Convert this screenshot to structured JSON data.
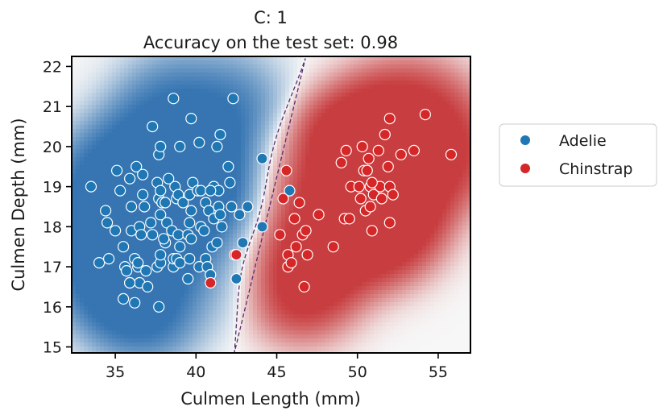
{
  "chart_data": {
    "type": "scatter",
    "title": "C: 1",
    "subtitle": "Accuracy on the test set: 0.98",
    "xlabel": "Culmen Length (mm)",
    "ylabel": "Culmen Depth (mm)",
    "xlim": [
      32.3,
      57.0
    ],
    "ylim": [
      14.85,
      22.25
    ],
    "xticks": [
      35,
      40,
      45,
      50,
      55
    ],
    "yticks": [
      15,
      16,
      17,
      18,
      19,
      20,
      21,
      22
    ],
    "grid": false,
    "background": "decision-function heatmap (blue = Adelie side, red = Chinstrap side) with dashed decision boundary",
    "legend": {
      "placement": "outside-right",
      "entries": [
        "Adelie",
        "Chinstrap"
      ]
    },
    "colors": {
      "Adelie": "#1f77b4",
      "Chinstrap": "#d62728",
      "boundary": "#5a2d6e"
    },
    "series": [
      {
        "name": "Adelie",
        "points": [
          [
            33.5,
            19.0
          ],
          [
            34.0,
            17.1
          ],
          [
            34.4,
            18.4
          ],
          [
            34.5,
            18.1
          ],
          [
            34.6,
            17.2
          ],
          [
            35.0,
            17.9
          ],
          [
            35.1,
            19.4
          ],
          [
            35.3,
            18.9
          ],
          [
            35.5,
            16.2
          ],
          [
            35.5,
            17.5
          ],
          [
            35.6,
            17.0
          ],
          [
            35.7,
            16.9
          ],
          [
            35.9,
            16.6
          ],
          [
            35.9,
            19.2
          ],
          [
            36.0,
            17.9
          ],
          [
            36.0,
            18.5
          ],
          [
            36.2,
            16.1
          ],
          [
            36.2,
            17.2
          ],
          [
            36.3,
            19.5
          ],
          [
            36.4,
            17.0
          ],
          [
            36.5,
            16.6
          ],
          [
            36.5,
            18.0
          ],
          [
            36.6,
            17.8
          ],
          [
            36.7,
            18.8
          ],
          [
            36.7,
            19.3
          ],
          [
            36.8,
            18.5
          ],
          [
            36.9,
            16.9
          ],
          [
            37.0,
            16.5
          ],
          [
            37.2,
            18.1
          ],
          [
            37.3,
            17.8
          ],
          [
            37.3,
            20.5
          ],
          [
            37.6,
            17.0
          ],
          [
            37.6,
            19.1
          ],
          [
            37.7,
            16.0
          ],
          [
            37.7,
            18.7
          ],
          [
            37.7,
            19.8
          ],
          [
            37.8,
            17.1
          ],
          [
            37.8,
            17.3
          ],
          [
            37.8,
            18.3
          ],
          [
            37.8,
            20.0
          ],
          [
            37.9,
            18.6
          ],
          [
            38.1,
            17.6
          ],
          [
            38.1,
            18.6
          ],
          [
            38.2,
            18.1
          ],
          [
            38.3,
            19.2
          ],
          [
            38.5,
            17.9
          ],
          [
            38.6,
            17.0
          ],
          [
            38.6,
            17.2
          ],
          [
            38.6,
            21.2
          ],
          [
            38.7,
            19.0
          ],
          [
            38.8,
            17.2
          ],
          [
            38.8,
            18.7
          ],
          [
            38.9,
            17.8
          ],
          [
            38.9,
            18.8
          ],
          [
            39.0,
            17.1
          ],
          [
            39.0,
            17.5
          ],
          [
            39.2,
            18.6
          ],
          [
            39.5,
            16.7
          ],
          [
            39.5,
            17.8
          ],
          [
            39.6,
            17.2
          ],
          [
            39.6,
            18.1
          ],
          [
            39.6,
            18.8
          ],
          [
            39.7,
            17.7
          ],
          [
            39.7,
            18.4
          ],
          [
            39.8,
            19.1
          ],
          [
            40.1,
            18.9
          ],
          [
            40.2,
            17.0
          ],
          [
            40.2,
            20.1
          ],
          [
            40.3,
            18.0
          ],
          [
            40.5,
            17.9
          ],
          [
            40.6,
            17.2
          ],
          [
            40.6,
            18.6
          ],
          [
            40.7,
            17.0
          ],
          [
            40.8,
            18.4
          ],
          [
            40.9,
            16.8
          ],
          [
            41.0,
            17.5
          ],
          [
            41.1,
            18.2
          ],
          [
            41.1,
            19.0
          ],
          [
            41.3,
            17.6
          ],
          [
            41.4,
            18.5
          ],
          [
            41.5,
            18.3
          ],
          [
            41.6,
            18.0
          ],
          [
            42.0,
            19.5
          ],
          [
            42.1,
            19.1
          ],
          [
            42.2,
            18.5
          ],
          [
            42.3,
            21.2
          ],
          [
            42.5,
            16.7
          ],
          [
            42.7,
            18.3
          ],
          [
            42.9,
            17.6
          ],
          [
            43.2,
            18.5
          ],
          [
            44.1,
            18.0
          ],
          [
            44.1,
            19.7
          ],
          [
            45.8,
            18.9
          ],
          [
            39.0,
            20.0
          ],
          [
            39.7,
            20.7
          ],
          [
            41.5,
            20.3
          ],
          [
            41.3,
            20.0
          ],
          [
            37.8,
            18.9
          ],
          [
            35.9,
            16.6
          ],
          [
            36.4,
            17.1
          ],
          [
            38.0,
            17.7
          ],
          [
            40.3,
            18.9
          ],
          [
            41.4,
            18.9
          ],
          [
            40.9,
            18.9
          ]
        ]
      },
      {
        "name": "Chinstrap",
        "points": [
          [
            40.9,
            16.6
          ],
          [
            42.4,
            17.3
          ],
          [
            42.5,
            17.3
          ],
          [
            45.2,
            17.8
          ],
          [
            45.4,
            18.7
          ],
          [
            45.6,
            19.4
          ],
          [
            45.7,
            17.0
          ],
          [
            45.7,
            17.3
          ],
          [
            45.9,
            17.1
          ],
          [
            46.1,
            18.2
          ],
          [
            46.2,
            17.5
          ],
          [
            46.4,
            18.6
          ],
          [
            46.6,
            17.8
          ],
          [
            46.7,
            16.5
          ],
          [
            46.8,
            17.9
          ],
          [
            46.9,
            17.3
          ],
          [
            47.6,
            18.3
          ],
          [
            48.5,
            17.5
          ],
          [
            49.0,
            19.6
          ],
          [
            49.2,
            18.2
          ],
          [
            49.3,
            19.9
          ],
          [
            49.5,
            18.2
          ],
          [
            49.6,
            19.0
          ],
          [
            50.1,
            19.0
          ],
          [
            50.2,
            18.7
          ],
          [
            50.3,
            20.0
          ],
          [
            50.4,
            19.4
          ],
          [
            50.5,
            18.4
          ],
          [
            50.6,
            19.4
          ],
          [
            50.7,
            19.7
          ],
          [
            50.8,
            18.5
          ],
          [
            50.8,
            19.0
          ],
          [
            50.9,
            17.9
          ],
          [
            51.0,
            18.8
          ],
          [
            51.3,
            19.9
          ],
          [
            51.4,
            19.0
          ],
          [
            51.7,
            20.3
          ],
          [
            51.9,
            19.5
          ],
          [
            52.0,
            18.1
          ],
          [
            52.0,
            19.0
          ],
          [
            52.0,
            20.7
          ],
          [
            52.2,
            18.8
          ],
          [
            52.7,
            19.8
          ],
          [
            53.5,
            19.9
          ],
          [
            54.2,
            20.8
          ],
          [
            55.8,
            19.8
          ],
          [
            50.9,
            19.1
          ],
          [
            50.6,
            19.4
          ],
          [
            51.5,
            18.7
          ]
        ]
      }
    ]
  }
}
